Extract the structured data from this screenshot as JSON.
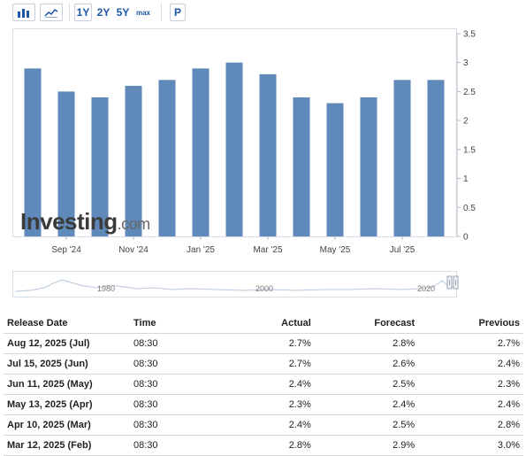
{
  "toolbar": {
    "chart_icon": "bar-chart-icon",
    "line_icon": "line-chart-icon",
    "ranges": [
      "1Y",
      "2Y",
      "5Y",
      "max"
    ],
    "active_range": "1Y",
    "p_label": "P"
  },
  "brand": {
    "name": "Investing",
    "suffix": ".com"
  },
  "colors": {
    "bar": "#5f89b8",
    "accent": "#1d57a8",
    "up": "#26a33a",
    "down": "#d81d1d"
  },
  "chart_data": {
    "type": "bar",
    "x": [
      "2024-08",
      "2024-09",
      "2024-10",
      "2024-11",
      "2024-12",
      "2025-01",
      "2025-02",
      "2025-03",
      "2025-04",
      "2025-05",
      "2025-06",
      "2025-07",
      "2025-08"
    ],
    "values": [
      2.9,
      2.5,
      2.4,
      2.6,
      2.7,
      2.9,
      3.0,
      2.8,
      2.4,
      2.3,
      2.4,
      2.7,
      2.7
    ],
    "x_tick_labels": [
      {
        "label": "Sep '24",
        "at": "2024-09"
      },
      {
        "label": "Nov '24",
        "at": "2024-11"
      },
      {
        "label": "Jan '25",
        "at": "2025-01"
      },
      {
        "label": "Mar '25",
        "at": "2025-03"
      },
      {
        "label": "May '25",
        "at": "2025-05"
      },
      {
        "label": "Jul '25",
        "at": "2025-07"
      }
    ],
    "y_ticks": [
      "0",
      "0.5",
      "1",
      "1.5",
      "2",
      "2.5",
      "3",
      "3.5"
    ],
    "ylim": [
      0,
      3.5
    ],
    "grid": false,
    "navigator_labels": [
      "1980",
      "2000",
      "2020"
    ]
  },
  "table": {
    "headers": {
      "release_date": "Release Date",
      "time": "Time",
      "actual": "Actual",
      "forecast": "Forecast",
      "previous": "Previous"
    },
    "rows": [
      {
        "date": "Aug 12, 2025 (Jul)",
        "time": "08:30",
        "actual": "2.7%",
        "actual_dir": "down",
        "forecast": "2.8%",
        "previous": "2.7%"
      },
      {
        "date": "Jul 15, 2025 (Jun)",
        "time": "08:30",
        "actual": "2.7%",
        "actual_dir": "up",
        "forecast": "2.6%",
        "previous": "2.4%"
      },
      {
        "date": "Jun 11, 2025 (May)",
        "time": "08:30",
        "actual": "2.4%",
        "actual_dir": "down",
        "forecast": "2.5%",
        "previous": "2.3%"
      },
      {
        "date": "May 13, 2025 (Apr)",
        "time": "08:30",
        "actual": "2.3%",
        "actual_dir": "down",
        "forecast": "2.4%",
        "previous": "2.4%"
      },
      {
        "date": "Apr 10, 2025 (Mar)",
        "time": "08:30",
        "actual": "2.4%",
        "actual_dir": "down",
        "forecast": "2.5%",
        "previous": "2.8%"
      },
      {
        "date": "Mar 12, 2025 (Feb)",
        "time": "08:30",
        "actual": "2.8%",
        "actual_dir": "down",
        "forecast": "2.9%",
        "previous": "3.0%"
      }
    ]
  }
}
